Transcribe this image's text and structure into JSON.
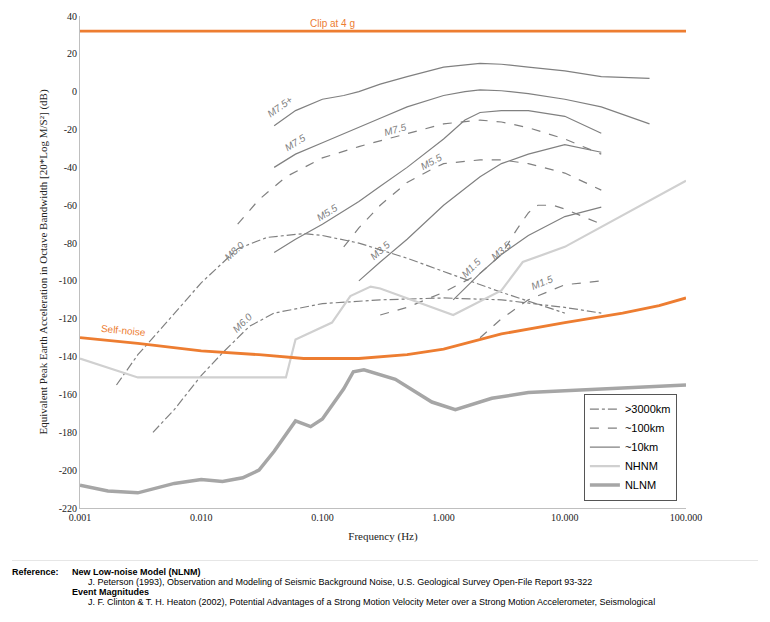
{
  "chart_data": {
    "type": "line",
    "x_label": "Frequency (Hz)",
    "y_label": "Equivalent Peak Earth Acceleration in Octave Bandwidth [20*Log M/S²] (dB)",
    "log": "x",
    "xlim": [
      0.001,
      100
    ],
    "xticks": [
      0.001,
      {
        "value": 0.01,
        "label": "0.010"
      },
      {
        "value": 0.1,
        "label": "0.100"
      },
      {
        "value": 1,
        "label": "1.000"
      },
      {
        "value": 10,
        "label": "10.000"
      },
      {
        "value": 100,
        "label": "100.000"
      }
    ],
    "ylim": [
      -220,
      40
    ],
    "yticks": [
      -220,
      -200,
      -180,
      -160,
      -140,
      -120,
      -100,
      -80,
      -60,
      -40,
      -20,
      0,
      20,
      40
    ],
    "grid": false,
    "legend": "lower right",
    "series": [
      {
        "name": ">3000km",
        "color": "#808080",
        "line_style": "dashdot",
        "x": [
          0.002,
          0.003,
          0.005,
          0.01,
          0.02,
          0.035,
          0.07,
          0.1,
          0.2,
          0.5,
          1,
          3,
          10
        ],
        "values": [
          -155,
          -139,
          -123,
          -101,
          -83,
          -77,
          -75,
          -76,
          -80,
          -88,
          -95,
          -106,
          -117
        ],
        "label": {
          "text": "M8.0",
          "x": 0.019,
          "y": -84
        }
      },
      {
        "name": ">3000km",
        "color": "#808080",
        "line_style": "dashdot",
        "x": [
          0.004,
          0.006,
          0.01,
          0.015,
          0.025,
          0.04,
          0.1,
          0.3,
          1,
          3,
          10,
          20
        ],
        "values": [
          -180,
          -168,
          -150,
          -138,
          -124,
          -117,
          -112,
          -110,
          -109,
          -110,
          -114,
          -117
        ],
        "label": {
          "text": "M6.0",
          "x": 0.022,
          "y": -122
        }
      },
      {
        "name": "~100km",
        "color": "#808080",
        "line_style": "dash",
        "x": [
          0.02,
          0.03,
          0.05,
          0.1,
          0.2,
          0.5,
          1,
          2,
          3,
          5,
          10,
          20
        ],
        "values": [
          -70,
          -57,
          -45,
          -35,
          -29,
          -22,
          -17,
          -15,
          -16,
          -19,
          -25,
          -33
        ],
        "label": {
          "text": "M7.5",
          "x": 0.4,
          "y": -20
        }
      },
      {
        "name": "~100km",
        "color": "#808080",
        "line_style": "dash",
        "x": [
          0.15,
          0.2,
          0.3,
          0.5,
          0.8,
          1,
          2,
          3,
          5,
          10,
          20
        ],
        "values": [
          -82,
          -72,
          -60,
          -48,
          -41,
          -38,
          -36,
          -36,
          -38,
          -43,
          -52
        ],
        "label": {
          "text": "M5.5",
          "x": 0.8,
          "y": -37
        }
      },
      {
        "name": "~100km",
        "color": "#808080",
        "line_style": "dash",
        "x": [
          0.3,
          0.5,
          1,
          2,
          3,
          4,
          5,
          6,
          8,
          10,
          20
        ],
        "values": [
          -118,
          -114,
          -106,
          -96,
          -86,
          -73,
          -64,
          -60,
          -60,
          -62,
          -70
        ],
        "label": {
          "text": "M3.5",
          "x": 3.0,
          "y": -84
        }
      },
      {
        "name": "~100km",
        "color": "#808080",
        "line_style": "dash",
        "x": [
          2,
          3,
          5,
          10,
          20
        ],
        "values": [
          -130,
          -120,
          -110,
          -102,
          -100
        ],
        "label": {
          "text": "M1.5",
          "x": 6.5,
          "y": -101
        }
      },
      {
        "name": "~10km",
        "color": "#808080",
        "line_style": "solid",
        "x": [
          0.04,
          0.06,
          0.1,
          0.15,
          0.2,
          0.3,
          0.5,
          1,
          2,
          3,
          5,
          10,
          20,
          50
        ],
        "values": [
          -18,
          -10,
          -4,
          -2,
          0,
          4,
          8,
          13,
          15,
          14.5,
          13,
          11,
          8,
          7
        ],
        "label": {
          "text": "M7.5+",
          "x": 0.045,
          "y": -8
        }
      },
      {
        "name": "~10km",
        "color": "#808080",
        "line_style": "solid",
        "x": [
          0.04,
          0.06,
          0.1,
          0.2,
          0.3,
          0.5,
          1,
          1.5,
          2,
          3,
          5,
          10,
          20,
          50
        ],
        "values": [
          -40,
          -33,
          -27,
          -19,
          -14,
          -8,
          -2,
          0,
          1,
          0.5,
          -1,
          -4,
          -8,
          -17
        ],
        "label": {
          "text": "M7.5",
          "x": 0.06,
          "y": -27
        }
      },
      {
        "name": "~10km",
        "color": "#808080",
        "line_style": "solid",
        "x": [
          0.04,
          0.06,
          0.1,
          0.2,
          0.3,
          0.5,
          1,
          1.5,
          2,
          3,
          5,
          10,
          20
        ],
        "values": [
          -85,
          -78,
          -70,
          -58,
          -50,
          -40,
          -25,
          -15,
          -11,
          -10,
          -10,
          -13,
          -22
        ],
        "label": {
          "text": "M5.5",
          "x": 0.11,
          "y": -64
        }
      },
      {
        "name": "~10km",
        "color": "#808080",
        "line_style": "solid",
        "x": [
          0.2,
          0.3,
          0.5,
          1,
          2,
          3,
          5,
          10,
          20
        ],
        "values": [
          -100,
          -90,
          -78,
          -60,
          -45,
          -38,
          -33,
          -28,
          -32
        ],
        "label": {
          "text": "M3.5",
          "x": 0.3,
          "y": -84
        }
      },
      {
        "name": "~10km",
        "color": "#808080",
        "line_style": "solid",
        "x": [
          1.2,
          2,
          3,
          5,
          10,
          20
        ],
        "values": [
          -110,
          -96,
          -86,
          -76,
          -66,
          -61
        ],
        "label": {
          "text": "M1.5",
          "x": 1.7,
          "y": -93
        }
      },
      {
        "name": "NHNM",
        "color": "#d0d0d0",
        "line_style": "solid",
        "x": [
          0.001,
          0.003,
          0.05,
          0.06,
          0.12,
          0.17,
          0.25,
          0.3,
          1.2,
          3,
          4.5,
          10,
          100
        ],
        "values": [
          -141,
          -151,
          -151,
          -131,
          -122,
          -108,
          -103,
          -104,
          -118,
          -105,
          -90,
          -82,
          -47
        ]
      },
      {
        "name": "NLNM",
        "color": "#a6a6a6",
        "line_style": "solid",
        "x": [
          0.001,
          0.0017,
          0.003,
          0.006,
          0.01,
          0.015,
          0.022,
          0.03,
          0.04,
          0.06,
          0.08,
          0.1,
          0.15,
          0.18,
          0.22,
          0.4,
          0.8,
          1.25,
          2.5,
          5,
          10,
          100
        ],
        "values": [
          -208,
          -211,
          -212,
          -207,
          -205,
          -206,
          -204,
          -200,
          -190,
          -174,
          -177,
          -173,
          -157,
          -148,
          -147,
          -152,
          -164,
          -168,
          -162,
          -159,
          -158,
          -155
        ]
      },
      {
        "color": "#ed7d31",
        "line_style": "solid",
        "x": [
          0.001,
          100
        ],
        "values": [
          32,
          32
        ],
        "label": {
          "text": "Clip at 4 g",
          "x": 0.12,
          "y": 36
        }
      },
      {
        "color": "#ed7d31",
        "line_style": "solid",
        "x": [
          0.001,
          0.003,
          0.01,
          0.03,
          0.07,
          0.2,
          0.5,
          1,
          3,
          10,
          30,
          60,
          100
        ],
        "values": [
          -130,
          -133,
          -137,
          -139,
          -141,
          -141,
          -139,
          -136,
          -128,
          -122,
          -117,
          -113,
          -109
        ],
        "label": {
          "text": "Self-noise",
          "x": 0.0023,
          "y": -126
        }
      }
    ]
  },
  "references": {
    "heading": "Reference:",
    "items": [
      {
        "title": "New Low-noise Model (NLNM)",
        "text": "J. Peterson (1993), Observation and Modeling of Seismic Background Noise, U.S. Geological Survey Open-File Report 93-322"
      },
      {
        "title": "Event Magnitudes",
        "text": "J. F. Clinton & T. H. Heaton (2002), Potential Advantages of a Strong Motion Velocity Meter over a Strong Motion Accelerometer, Seismological"
      }
    ]
  }
}
